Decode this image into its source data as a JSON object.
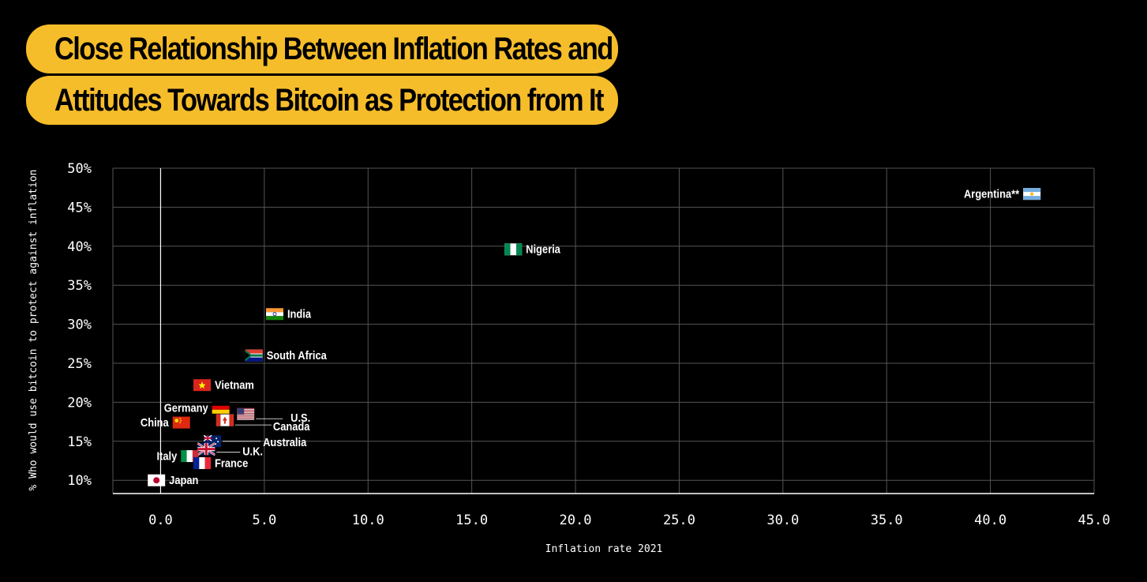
{
  "title": {
    "line1": "Close Relationship Between Inflation Rates and",
    "line2": "Attitudes Towards Bitcoin as Protection from It"
  },
  "colors": {
    "accent": "#f6bd2a",
    "background": "#000000",
    "grid": "#555555"
  },
  "chart_data": {
    "type": "scatter",
    "xlabel": "Inflation rate 2021",
    "ylabel": "% Who would use bitcoin to protect against inflation",
    "xlim": [
      -2.3,
      45.0
    ],
    "ylim": [
      8.3,
      50
    ],
    "x_ticks": [
      "0.0",
      "5.0",
      "10.0",
      "15.0",
      "20.0",
      "25.0",
      "30.0",
      "35.0",
      "40.0",
      "45.0"
    ],
    "y_ticks": [
      "50%",
      "45%",
      "40%",
      "35%",
      "30%",
      "25%",
      "20%",
      "15%",
      "10%"
    ],
    "grid": true,
    "points": [
      {
        "country": "Argentina**",
        "x": 42.0,
        "y": 46.7,
        "label_side": "left",
        "flag": "argentina"
      },
      {
        "country": "Nigeria",
        "x": 17.0,
        "y": 39.6,
        "label_side": "right",
        "flag": "nigeria"
      },
      {
        "country": "India",
        "x": 5.5,
        "y": 31.3,
        "label_side": "right",
        "flag": "india"
      },
      {
        "country": "South Africa",
        "x": 4.5,
        "y": 26.0,
        "label_side": "right",
        "flag": "south-africa"
      },
      {
        "country": "Vietnam",
        "x": 2.0,
        "y": 22.2,
        "label_side": "right",
        "flag": "vietnam"
      },
      {
        "country": "Germany",
        "x": 2.9,
        "y": 19.3,
        "label_side": "left",
        "flag": "germany"
      },
      {
        "country": "U.S.",
        "x": 4.1,
        "y": 18.5,
        "label_side": "callout-right",
        "flag": "usa"
      },
      {
        "country": "Canada",
        "x": 3.1,
        "y": 17.7,
        "label_side": "callout-right",
        "flag": "canada"
      },
      {
        "country": "China",
        "x": 1.0,
        "y": 17.4,
        "label_side": "left",
        "flag": "china"
      },
      {
        "country": "Australia",
        "x": 2.5,
        "y": 15.0,
        "label_side": "callout-right",
        "flag": "australia"
      },
      {
        "country": "U.K.",
        "x": 2.2,
        "y": 14.0,
        "label_side": "callout-right",
        "flag": "uk"
      },
      {
        "country": "Italy",
        "x": 1.4,
        "y": 13.1,
        "label_side": "left",
        "flag": "italy"
      },
      {
        "country": "France",
        "x": 2.0,
        "y": 12.2,
        "label_side": "right",
        "flag": "france"
      },
      {
        "country": "Japan",
        "x": -0.2,
        "y": 10.0,
        "label_side": "right",
        "flag": "japan"
      }
    ]
  }
}
